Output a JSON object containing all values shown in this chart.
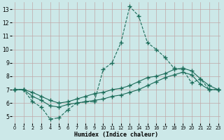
{
  "bg_color": "#cce8e8",
  "grid_color": "#c0a8a8",
  "line_color": "#1a6b58",
  "xlim": [
    -0.3,
    23.3
  ],
  "ylim": [
    4.5,
    13.5
  ],
  "xticks": [
    0,
    1,
    2,
    3,
    4,
    5,
    6,
    7,
    8,
    9,
    10,
    11,
    12,
    13,
    14,
    15,
    16,
    17,
    18,
    19,
    20,
    21,
    22,
    23
  ],
  "yticks": [
    5,
    6,
    7,
    8,
    9,
    10,
    11,
    12,
    13
  ],
  "line1_x": [
    0,
    1,
    2,
    3,
    4,
    5,
    6,
    7,
    8,
    9,
    10,
    11,
    12,
    13,
    14,
    15,
    16,
    17,
    18,
    19,
    20,
    21,
    22,
    23
  ],
  "line1_y": [
    7.0,
    7.0,
    6.1,
    5.7,
    4.8,
    4.9,
    5.5,
    6.0,
    6.1,
    6.1,
    8.5,
    9.0,
    10.5,
    13.2,
    12.5,
    10.5,
    10.0,
    9.4,
    8.6,
    8.5,
    7.5,
    7.8,
    7.0,
    7.0
  ],
  "line2_x": [
    0,
    1,
    2,
    3,
    4,
    5,
    6,
    7,
    8,
    9,
    10,
    11,
    12,
    13,
    14,
    15,
    16,
    17,
    18,
    19,
    20,
    21,
    22,
    23
  ],
  "line2_y": [
    7.0,
    7.0,
    6.8,
    6.5,
    6.2,
    6.0,
    6.1,
    6.3,
    6.5,
    6.7,
    6.8,
    7.0,
    7.1,
    7.3,
    7.6,
    7.9,
    8.0,
    8.2,
    8.5,
    8.6,
    8.4,
    7.8,
    7.3,
    7.0
  ],
  "line3_x": [
    0,
    1,
    2,
    3,
    4,
    5,
    6,
    7,
    8,
    9,
    10,
    11,
    12,
    13,
    14,
    15,
    16,
    17,
    18,
    19,
    20,
    21,
    22,
    23
  ],
  "line3_y": [
    7.0,
    7.0,
    6.5,
    6.2,
    5.8,
    5.7,
    5.9,
    6.0,
    6.1,
    6.2,
    6.3,
    6.5,
    6.6,
    6.8,
    7.0,
    7.3,
    7.6,
    7.9,
    8.1,
    8.3,
    8.1,
    7.4,
    7.0,
    7.0
  ],
  "xlabel": "Humidex (Indice chaleur)",
  "xlabel_fontsize": 6.0,
  "tick_fontsize_x": 4.8,
  "tick_fontsize_y": 5.5
}
